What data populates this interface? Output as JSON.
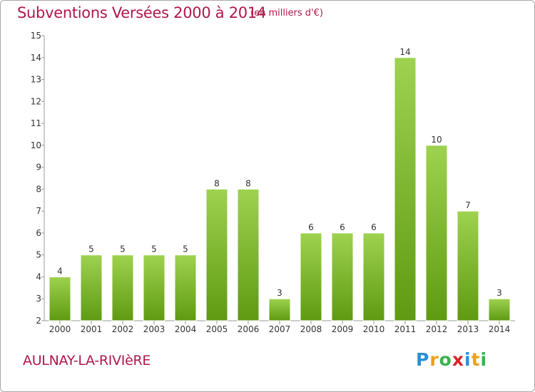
{
  "chart_data": {
    "type": "bar",
    "title": "Subventions Versées 2000 à 2014",
    "subtitle": "(en milliers d'€)",
    "categories": [
      "2000",
      "2001",
      "2002",
      "2003",
      "2004",
      "2005",
      "2006",
      "2007",
      "2008",
      "2009",
      "2010",
      "2011",
      "2012",
      "2013",
      "2014"
    ],
    "values": [
      4,
      5,
      5,
      5,
      5,
      8,
      8,
      3,
      6,
      6,
      6,
      14,
      10,
      7,
      3
    ],
    "data_labels": [
      "4",
      "5",
      "5",
      "5",
      "5",
      "8",
      "8",
      "3",
      "6",
      "6",
      "6",
      "14",
      "10",
      "7",
      "3"
    ],
    "ylim": [
      2,
      15
    ],
    "yticks": [
      "2",
      "3",
      "4",
      "5",
      "6",
      "7",
      "8",
      "9",
      "10",
      "11",
      "12",
      "13",
      "14",
      "15"
    ],
    "grid": false,
    "bar_color_top": "#9ed24f",
    "bar_color_bottom": "#5f9a12"
  },
  "footer": {
    "commune": "AULNAY-LA-RIVIèRE",
    "logo_letters": [
      {
        "ch": "P",
        "color": "#2a8fd6"
      },
      {
        "ch": "r",
        "color": "#e8a21b"
      },
      {
        "ch": "o",
        "color": "#3bb24a"
      },
      {
        "ch": "x",
        "color": "#d8252b"
      },
      {
        "ch": "i",
        "color": "#2a8fd6"
      },
      {
        "ch": "t",
        "color": "#e8a21b"
      },
      {
        "ch": "i",
        "color": "#3bb24a"
      }
    ]
  }
}
